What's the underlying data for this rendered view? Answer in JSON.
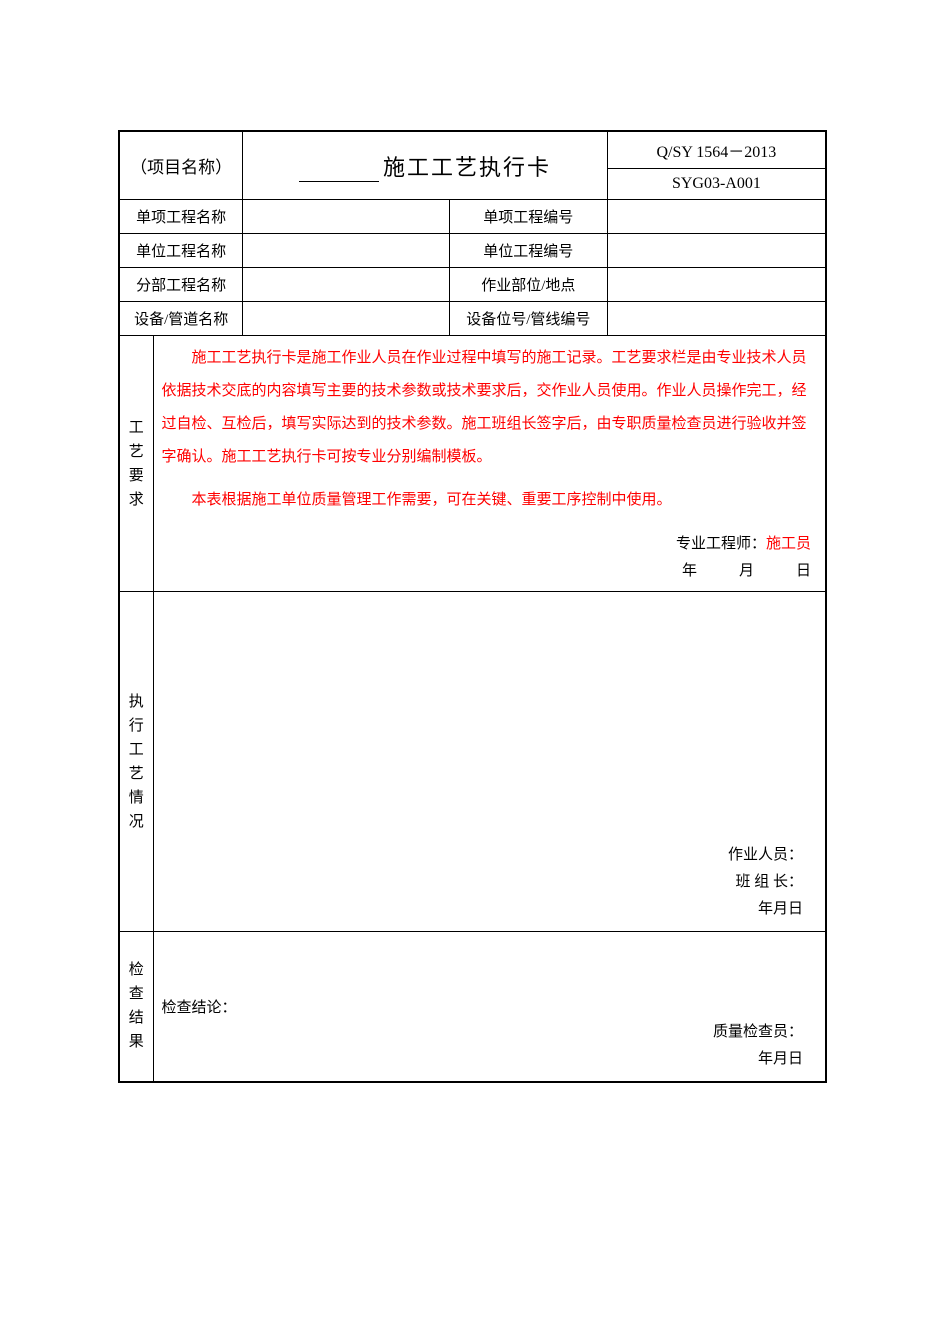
{
  "header": {
    "project_label": "（项目名称）",
    "title_blank": "",
    "title": "施工工艺执行卡",
    "code_top": "Q/SY 1564－2013",
    "code_bottom": "SYG03-A001"
  },
  "info_rows": [
    {
      "l1": "单项工程名称",
      "v1": "",
      "l2": "单项工程编号",
      "v2": ""
    },
    {
      "l1": "单位工程名称",
      "v1": "",
      "l2": "单位工程编号",
      "v2": ""
    },
    {
      "l1": "分部工程名称",
      "v1": "",
      "l2": "作业部位/地点",
      "v2": ""
    },
    {
      "l1": "设备/管道名称",
      "v1": "",
      "l2": "设备位号/管线编号",
      "v2": ""
    }
  ],
  "section1": {
    "vlabel": "工艺要求",
    "para1": "施工工艺执行卡是施工作业人员在作业过程中填写的施工记录。工艺要求栏是由专业技术人员依据技术交底的内容填写主要的技术参数或技术要求后，交作业人员使用。作业人员操作完工，经过自检、互检后，填写实际达到的技术参数。施工班组长签字后，由专职质量检查员进行验收并签字确认。施工工艺执行卡可按专业分别编制模板。",
    "para2": "本表根据施工单位质量管理工作需要，可在关键、重要工序控制中使用。",
    "sig_label": "专业工程师：",
    "sig_value": "施工员",
    "y": "年",
    "m": "月",
    "d": "日"
  },
  "section2": {
    "vlabel": "执行工艺情况",
    "sig_label1": "作业人员：",
    "sig_label2": "班 组 长：",
    "y": "年",
    "m": "月",
    "d": "日"
  },
  "section3": {
    "vlabel": "检查结果",
    "top_label": "检查结论：",
    "sig_label": "质量检查员：",
    "y": "年",
    "m": "月",
    "d": "日"
  },
  "colors": {
    "text": "#000000",
    "red": "#ff0000",
    "border": "#000000",
    "background": "#ffffff"
  }
}
